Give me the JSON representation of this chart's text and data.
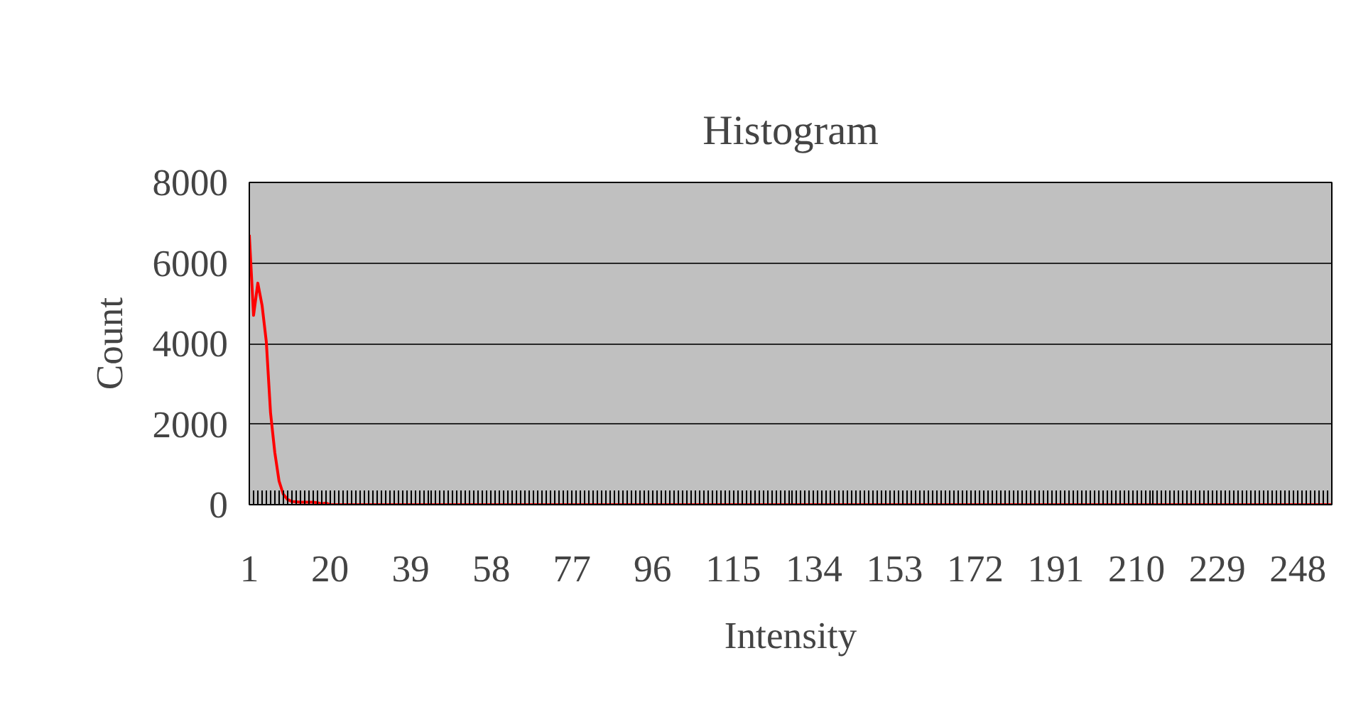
{
  "chart_data": {
    "type": "line",
    "title": "Histogram",
    "xlabel": "Intensity",
    "ylabel": "Count",
    "x": [
      1,
      2,
      3,
      4,
      5,
      6,
      7,
      8,
      9,
      10,
      11,
      12,
      13,
      14,
      15,
      16,
      17,
      18,
      19,
      20,
      21,
      22,
      23,
      24,
      25,
      26,
      27,
      28,
      29,
      30,
      31,
      32,
      33,
      34,
      35,
      36,
      37,
      38,
      39,
      40,
      41,
      42,
      43,
      44,
      45,
      46,
      47,
      48,
      49,
      50,
      51,
      52,
      53,
      54,
      55,
      56,
      57,
      58,
      59,
      60,
      61,
      62,
      63,
      64,
      65,
      66,
      67,
      68,
      69,
      70,
      71,
      72,
      73,
      74,
      75,
      76,
      77,
      78,
      79,
      80,
      81,
      82,
      83,
      84,
      85,
      86,
      87,
      88,
      89,
      90,
      91,
      92,
      93,
      94,
      95,
      96,
      97,
      98,
      99,
      100,
      101,
      102,
      103,
      104,
      105,
      106,
      107,
      108,
      109,
      110,
      111,
      112,
      113,
      114,
      115,
      116,
      117,
      118,
      119,
      120,
      121,
      122,
      123,
      124,
      125,
      126,
      127,
      128,
      129,
      130,
      131,
      132,
      133,
      134,
      135,
      136,
      137,
      138,
      139,
      140,
      141,
      142,
      143,
      144,
      145,
      146,
      147,
      148,
      149,
      150,
      151,
      152,
      153,
      154,
      155,
      156,
      157,
      158,
      159,
      160,
      161,
      162,
      163,
      164,
      165,
      166,
      167,
      168,
      169,
      170,
      171,
      172,
      173,
      174,
      175,
      176,
      177,
      178,
      179,
      180,
      181,
      182,
      183,
      184,
      185,
      186,
      187,
      188,
      189,
      190,
      191,
      192,
      193,
      194,
      195,
      196,
      197,
      198,
      199,
      200,
      201,
      202,
      203,
      204,
      205,
      206,
      207,
      208,
      209,
      210,
      211,
      212,
      213,
      214,
      215,
      216,
      217,
      218,
      219,
      220,
      221,
      222,
      223,
      224,
      225,
      226,
      227,
      228,
      229,
      230,
      231,
      232,
      233,
      234,
      235,
      236,
      237,
      238,
      239,
      240,
      241,
      242,
      243,
      244,
      245,
      246,
      247,
      248,
      249,
      250,
      251,
      252,
      253,
      254,
      255,
      256
    ],
    "series": [
      {
        "color": "#ff0000",
        "values": [
          6700,
          4700,
          5500,
          4950,
          4050,
          2280,
          1300,
          590,
          260,
          130,
          80,
          70,
          60,
          60,
          60,
          60,
          50,
          20,
          40,
          0,
          0,
          0,
          0,
          0,
          0,
          0,
          0,
          0,
          0,
          0,
          0,
          0,
          0,
          0,
          0,
          0,
          0,
          0,
          0,
          0,
          0,
          0,
          0,
          0,
          0,
          0,
          0,
          0,
          0,
          0,
          0,
          0,
          0,
          0,
          0,
          0,
          0,
          0,
          0,
          0,
          0,
          0,
          0,
          0,
          0,
          0,
          0,
          0,
          0,
          0,
          0,
          0,
          0,
          0,
          0,
          0,
          0,
          0,
          0,
          0,
          0,
          0,
          0,
          0,
          0,
          0,
          0,
          0,
          0,
          0,
          0,
          0,
          0,
          0,
          0,
          0,
          0,
          0,
          0,
          0,
          0,
          0,
          0,
          0,
          0,
          0,
          0,
          0,
          0,
          0,
          0,
          0,
          0,
          0,
          0,
          0,
          0,
          0,
          0,
          0,
          0,
          0,
          0,
          0,
          0,
          0,
          0,
          0,
          0,
          0,
          0,
          0,
          0,
          0,
          0,
          0,
          0,
          0,
          0,
          0,
          0,
          0,
          0,
          0,
          0,
          0,
          0,
          0,
          0,
          0,
          0,
          0,
          0,
          0,
          0,
          0,
          0,
          0,
          0,
          0,
          0,
          0,
          0,
          0,
          0,
          0,
          0,
          0,
          0,
          0,
          0,
          0,
          0,
          0,
          0,
          0,
          0,
          0,
          0,
          0,
          0,
          0,
          0,
          0,
          0,
          0,
          0,
          0,
          0,
          0,
          0,
          0,
          0,
          0,
          0,
          0,
          0,
          0,
          0,
          0,
          0,
          0,
          0,
          0,
          0,
          0,
          0,
          0,
          0,
          0,
          0,
          0,
          0,
          0,
          0,
          0,
          0,
          0,
          0,
          0,
          0,
          0,
          0,
          0,
          0,
          0,
          0,
          0,
          0,
          0,
          0,
          0,
          0,
          0,
          0,
          0,
          0,
          0,
          0,
          0,
          0,
          0,
          0,
          0,
          0,
          0,
          0,
          0,
          0,
          0,
          0,
          0,
          0,
          0,
          0,
          0
        ]
      }
    ],
    "xlim": [
      1,
      256
    ],
    "xticks": [
      1,
      20,
      39,
      58,
      77,
      96,
      115,
      134,
      153,
      172,
      191,
      210,
      229,
      248
    ],
    "ylim": [
      0,
      8000
    ],
    "yticks": [
      0,
      2000,
      4000,
      6000,
      8000
    ],
    "grid": "y",
    "line_style": "solid"
  }
}
